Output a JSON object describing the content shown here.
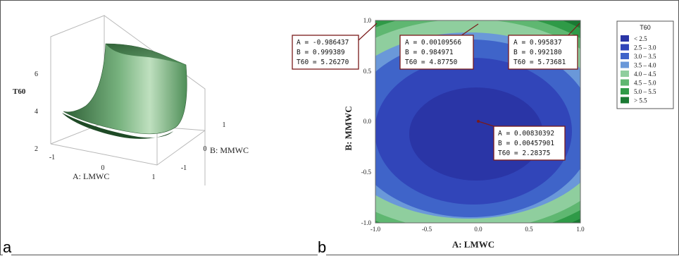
{
  "panel_labels": {
    "a": "a",
    "b": "b"
  },
  "chart_data": [
    {
      "type": "surface",
      "panel": "a",
      "xlabel": "A: LMWC",
      "ylabel": "B: MMWC",
      "zlabel": "T60",
      "x_ticks": [
        "-1",
        "0",
        "1"
      ],
      "y_ticks": [
        "-1",
        "0",
        "1"
      ],
      "z_ticks": [
        "2",
        "4",
        "6"
      ],
      "xlim": [
        -1,
        1
      ],
      "ylim": [
        -1,
        1
      ],
      "zlim": [
        2,
        6
      ],
      "color": "#3d7a45"
    },
    {
      "type": "contour",
      "panel": "b",
      "xlabel": "A: LMWC",
      "ylabel": "B: MMWC",
      "xlim": [
        -1,
        1
      ],
      "ylim": [
        -1,
        1
      ],
      "x_ticks": [
        "-1.0",
        "-0.5",
        "0.0",
        "0.5",
        "1.0"
      ],
      "y_ticks": [
        "-1.0",
        "-0.5",
        "0.0",
        "0.5",
        "1.0"
      ],
      "minimum": {
        "x": 0.008,
        "y": 0.005,
        "value": 2.284
      },
      "legend": {
        "title": "T60",
        "position": "right",
        "entries": [
          {
            "label": "< 2.5",
            "color": "#2a35a6"
          },
          {
            "label": "2.5 – 3.0",
            "color": "#3145b9"
          },
          {
            "label": "3.0 – 3.5",
            "color": "#3f64c9"
          },
          {
            "label": "3.5 – 4.0",
            "color": "#6a98d9"
          },
          {
            "label": "4.0 – 4.5",
            "color": "#8fce9e"
          },
          {
            "label": "4.5 – 5.0",
            "color": "#5fb771"
          },
          {
            "label": "5.0 – 5.5",
            "color": "#2f9a47"
          },
          {
            "label": "> 5.5",
            "color": "#1a7a33"
          }
        ]
      },
      "annotations": [
        {
          "A": "-0.986437",
          "B": "0.999389",
          "T60": "5.26270"
        },
        {
          "A": "0.00109566",
          "B": "0.984971",
          "T60": "4.87750"
        },
        {
          "A": "0.995837",
          "B": "0.992180",
          "T60": "5.73681"
        },
        {
          "A": "0.00830392",
          "B": "0.00457901",
          "T60": "2.28375"
        }
      ]
    }
  ]
}
